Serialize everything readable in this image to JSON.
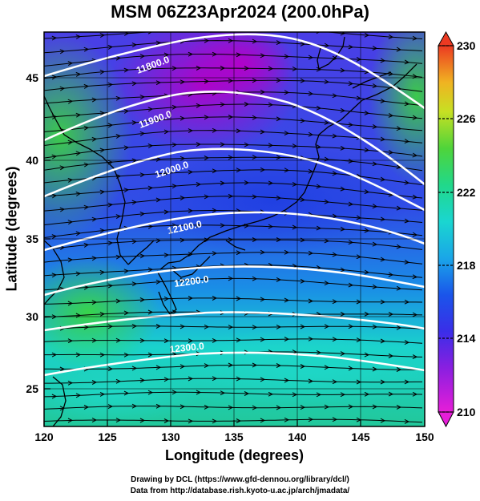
{
  "title": "MSM 06Z23Apr2024 (200.0hPa)",
  "xlabel": "Longitude (degrees)",
  "ylabel": "Latitude  (degrees)",
  "x_ticks": [
    "120",
    "125",
    "130",
    "135",
    "140",
    "145",
    "150"
  ],
  "y_ticks": [
    "25",
    "30",
    "35",
    "40",
    "45"
  ],
  "colorbar": {
    "min": 210,
    "max": 230,
    "tick_labels": [
      "230",
      "226",
      "222",
      "218",
      "214",
      "210"
    ]
  },
  "contour_labels": [
    "11800.0",
    "11900.0",
    "12000.0",
    "12100.0",
    "12200.0",
    "12300.0"
  ],
  "credits": {
    "line1": "Drawing by DCL (https://www.gfd-dennou.org/library/dcl/)",
    "line2": "Data from http://database.rish.kyoto-u.ac.jp/arch/jmadata/"
  }
}
